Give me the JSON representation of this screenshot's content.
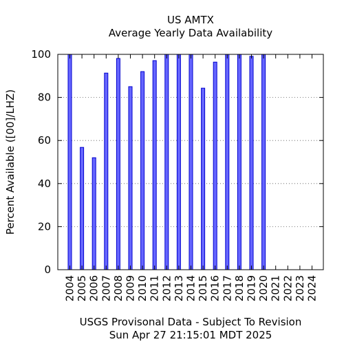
{
  "chart_data": {
    "type": "bar",
    "title": "US AMTX",
    "subtitle": "Average Yearly Data Availability",
    "ylabel": "Percent Available ([00]/LHZ)",
    "xlabel": "",
    "ylim": [
      0,
      100
    ],
    "yticks": [
      0,
      20,
      40,
      60,
      80,
      100
    ],
    "grid": true,
    "categories": [
      "2004",
      "2005",
      "2006",
      "2007",
      "2008",
      "2009",
      "2010",
      "2011",
      "2012",
      "2013",
      "2014",
      "2015",
      "2016",
      "2017",
      "2018",
      "2019",
      "2020",
      "2021",
      "2022",
      "2023",
      "2024"
    ],
    "values": [
      100,
      56.8,
      52,
      91.3,
      98.1,
      85,
      92,
      97.1,
      100,
      100,
      100,
      84.3,
      96.4,
      100,
      100,
      99.1,
      100,
      null,
      null,
      null,
      null
    ],
    "bar_color": "#6666ff",
    "bar_edge_color": "#0000cc",
    "footer_lines": [
      "USGS Provisonal Data - Subject To Revision",
      "Sun Apr 27 21:15:01 MDT 2025"
    ]
  }
}
